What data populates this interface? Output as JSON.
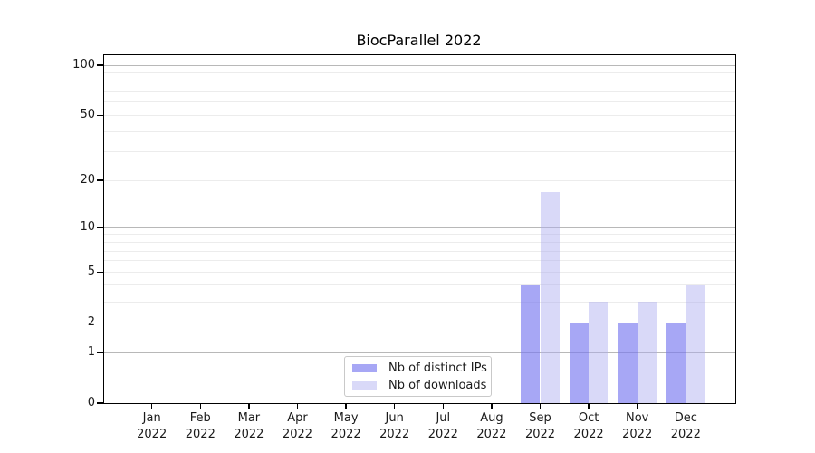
{
  "chart_data": {
    "type": "bar",
    "title": "BiocParallel 2022",
    "categories": [
      "Jan",
      "Feb",
      "Mar",
      "Apr",
      "May",
      "Jun",
      "Jul",
      "Aug",
      "Sep",
      "Oct",
      "Nov",
      "Dec"
    ],
    "year_label": "2022",
    "series": [
      {
        "name": "Nb of distinct IPs",
        "color": "rgba(120,120,240,0.65)",
        "values": [
          0,
          0,
          0,
          0,
          0,
          0,
          0,
          0,
          4,
          2,
          2,
          2
        ]
      },
      {
        "name": "Nb of downloads",
        "color": "rgba(170,170,240,0.45)",
        "values": [
          0,
          0,
          0,
          0,
          0,
          0,
          0,
          0,
          17,
          3,
          3,
          4
        ]
      }
    ],
    "xlabel": "",
    "ylabel": "",
    "yscale": "log1p",
    "yticks": [
      0,
      1,
      2,
      5,
      10,
      20,
      50,
      100
    ],
    "ylim": [
      0,
      115
    ],
    "major_gridlines": [
      1,
      10,
      100
    ],
    "minor_gridlines": [
      2,
      3,
      4,
      5,
      6,
      7,
      8,
      9,
      20,
      30,
      40,
      50,
      60,
      70,
      80,
      90
    ],
    "grid": true,
    "legend_position": "bottom-center"
  }
}
